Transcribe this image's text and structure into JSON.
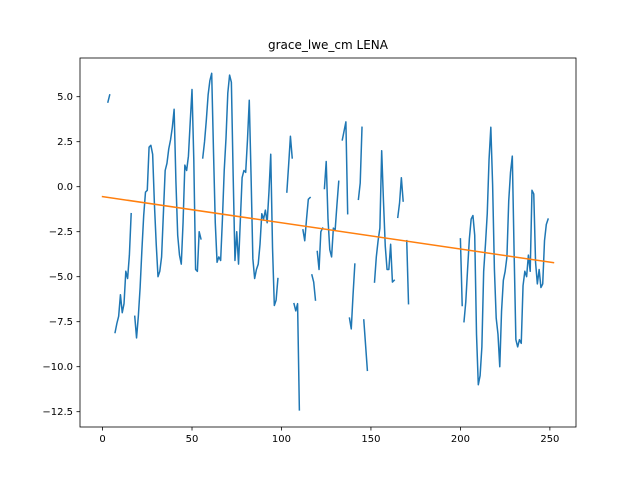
{
  "chart_data": {
    "type": "line",
    "title": "grace_lwe_cm LENA",
    "xlabel": "",
    "ylabel": "",
    "xlim": [
      -12.6,
      264.6
    ],
    "ylim": [
      -13.35,
      7.15
    ],
    "x_ticks": [
      0,
      50,
      100,
      150,
      200,
      250
    ],
    "y_ticks": [
      5.0,
      2.5,
      0.0,
      -2.5,
      -5.0,
      -7.5,
      -10.0,
      -12.5
    ],
    "grid": false,
    "legend": "none",
    "series": [
      {
        "color": "#1f77b4",
        "segments": [
          [
            [
              3,
              4.7
            ],
            [
              4,
              5.1
            ]
          ],
          [
            [
              7,
              -8.1
            ],
            [
              8,
              -7.6
            ],
            [
              9,
              -7.2
            ],
            [
              10,
              -6.0
            ],
            [
              11,
              -7.0
            ],
            [
              12,
              -6.5
            ],
            [
              13,
              -4.7
            ],
            [
              14,
              -5.1
            ],
            [
              15,
              -3.8
            ],
            [
              16,
              -1.5
            ]
          ],
          [
            [
              18,
              -7.2
            ],
            [
              19,
              -8.4
            ],
            [
              20,
              -7.2
            ],
            [
              21,
              -5.6
            ],
            [
              22,
              -3.5
            ],
            [
              23,
              -1.6
            ],
            [
              24,
              -0.3
            ],
            [
              25,
              -0.2
            ],
            [
              26,
              2.2
            ],
            [
              27,
              2.3
            ],
            [
              28,
              1.8
            ],
            [
              29,
              -1.0
            ],
            [
              30,
              -3.2
            ],
            [
              31,
              -5.0
            ],
            [
              32,
              -4.7
            ],
            [
              33,
              -3.9
            ],
            [
              34,
              -1.5
            ],
            [
              35,
              0.9
            ],
            [
              36,
              1.3
            ],
            [
              37,
              2.1
            ],
            [
              38,
              2.6
            ],
            [
              39,
              3.3
            ],
            [
              40,
              4.3
            ],
            [
              41,
              0.3
            ],
            [
              42,
              -2.7
            ],
            [
              43,
              -3.8
            ],
            [
              44,
              -4.3
            ],
            [
              45,
              -2.0
            ],
            [
              46,
              1.2
            ],
            [
              47,
              0.9
            ],
            [
              48,
              1.7
            ],
            [
              49,
              3.6
            ],
            [
              50,
              5.4
            ],
            [
              51,
              1.5
            ],
            [
              52,
              -4.6
            ],
            [
              53,
              -4.7
            ],
            [
              54,
              -2.5
            ],
            [
              55,
              -2.9
            ]
          ],
          [
            [
              56,
              1.6
            ],
            [
              57,
              2.5
            ],
            [
              58,
              3.7
            ],
            [
              59,
              5.1
            ],
            [
              60,
              5.9
            ],
            [
              61,
              6.3
            ],
            [
              62,
              2.0
            ],
            [
              63,
              -2.0
            ],
            [
              64,
              -4.2
            ],
            [
              65,
              -3.9
            ],
            [
              66,
              -4.1
            ],
            [
              67,
              -1.8
            ],
            [
              68,
              0.9
            ],
            [
              69,
              2.7
            ],
            [
              70,
              5.2
            ],
            [
              71,
              6.2
            ],
            [
              72,
              5.8
            ],
            [
              73,
              0.6
            ],
            [
              74,
              -4.1
            ],
            [
              75,
              -2.5
            ],
            [
              76,
              -4.3
            ],
            [
              77,
              -1.9
            ],
            [
              78,
              0.5
            ],
            [
              79,
              0.9
            ],
            [
              80,
              0.8
            ],
            [
              81,
              2.6
            ],
            [
              82,
              4.8
            ],
            [
              83,
              0.6
            ],
            [
              84,
              -4.0
            ],
            [
              85,
              -5.1
            ],
            [
              86,
              -4.6
            ],
            [
              87,
              -4.3
            ],
            [
              88,
              -3.2
            ],
            [
              89,
              -1.5
            ],
            [
              90,
              -1.8
            ],
            [
              91,
              -1.3
            ],
            [
              92,
              -2.0
            ],
            [
              93,
              -0.3
            ],
            [
              94,
              1.8
            ],
            [
              95,
              -3.4
            ],
            [
              96,
              -6.6
            ],
            [
              97,
              -6.3
            ],
            [
              98,
              -5.1
            ]
          ],
          [
            [
              103,
              -0.3
            ],
            [
              104,
              1.2
            ],
            [
              105,
              2.8
            ],
            [
              106,
              1.6
            ]
          ],
          [
            [
              107,
              -6.5
            ],
            [
              108,
              -6.9
            ],
            [
              109,
              -6.5
            ],
            [
              110,
              -12.4
            ]
          ],
          [
            [
              112,
              -2.4
            ],
            [
              113,
              -3.0
            ],
            [
              114,
              -1.8
            ],
            [
              115,
              -0.7
            ],
            [
              116,
              -0.6
            ]
          ],
          [
            [
              117,
              -4.9
            ],
            [
              118,
              -5.3
            ],
            [
              119,
              -6.3
            ]
          ],
          [
            [
              120,
              -3.6
            ],
            [
              121,
              -4.6
            ],
            [
              122,
              -2.5
            ],
            [
              123,
              -2.3
            ]
          ],
          [
            [
              124,
              -0.1
            ],
            [
              125,
              1.4
            ],
            [
              126,
              -1.8
            ],
            [
              127,
              -3.5
            ],
            [
              128,
              -3.9
            ],
            [
              129,
              -2.3
            ],
            [
              130,
              -2.4
            ],
            [
              131,
              -1.0
            ],
            [
              132,
              0.3
            ]
          ],
          [
            [
              134,
              2.6
            ],
            [
              135,
              3.1
            ],
            [
              136,
              3.6
            ],
            [
              137,
              -1.5
            ]
          ],
          [
            [
              138,
              -7.3
            ],
            [
              139,
              -7.9
            ],
            [
              140,
              -6.0
            ],
            [
              141,
              -4.3
            ]
          ],
          [
            [
              143,
              -0.7
            ],
            [
              144,
              0.2
            ],
            [
              145,
              3.3
            ]
          ],
          [
            [
              146,
              -7.4
            ],
            [
              147,
              -8.8
            ],
            [
              148,
              -10.2
            ]
          ],
          [
            [
              152,
              -5.3
            ],
            [
              153,
              -3.9
            ],
            [
              154,
              -3.0
            ],
            [
              155,
              -2.3
            ],
            [
              156,
              2.0
            ],
            [
              157,
              -0.8
            ],
            [
              158,
              -3.3
            ],
            [
              159,
              -4.6
            ],
            [
              160,
              -4.6
            ],
            [
              161,
              -3.2
            ],
            [
              162,
              -5.3
            ],
            [
              163,
              -5.2
            ]
          ],
          [
            [
              165,
              -1.7
            ],
            [
              166,
              -0.9
            ],
            [
              167,
              0.5
            ],
            [
              168,
              -0.8
            ]
          ],
          [
            [
              170,
              -3.0
            ],
            [
              171,
              -6.5
            ]
          ],
          [
            [
              200,
              -2.9
            ],
            [
              201,
              -6.6
            ]
          ],
          [
            [
              202,
              -7.5
            ],
            [
              203,
              -6.4
            ],
            [
              204,
              -4.6
            ],
            [
              205,
              -2.9
            ],
            [
              206,
              -1.8
            ],
            [
              207,
              -1.6
            ],
            [
              208,
              -2.7
            ],
            [
              209,
              -8.2
            ],
            [
              210,
              -11.0
            ],
            [
              211,
              -10.5
            ],
            [
              212,
              -8.9
            ],
            [
              213,
              -4.7
            ],
            [
              214,
              -3.2
            ],
            [
              215,
              -1.5
            ],
            [
              216,
              1.5
            ],
            [
              217,
              3.3
            ],
            [
              218,
              0.1
            ],
            [
              219,
              -4.6
            ],
            [
              220,
              -7.3
            ],
            [
              221,
              -8.2
            ],
            [
              222,
              -10.0
            ],
            [
              223,
              -6.9
            ],
            [
              224,
              -5.2
            ],
            [
              225,
              -4.7
            ],
            [
              226,
              -3.9
            ],
            [
              227,
              -0.8
            ],
            [
              228,
              0.8
            ],
            [
              229,
              1.7
            ],
            [
              230,
              -3.6
            ],
            [
              231,
              -8.5
            ],
            [
              232,
              -8.9
            ],
            [
              233,
              -8.5
            ],
            [
              234,
              -8.7
            ],
            [
              235,
              -5.5
            ],
            [
              236,
              -4.7
            ],
            [
              237,
              -5.0
            ],
            [
              238,
              -3.8
            ],
            [
              239,
              -4.7
            ],
            [
              240,
              -0.2
            ],
            [
              241,
              -0.4
            ],
            [
              242,
              -4.2
            ],
            [
              243,
              -5.4
            ],
            [
              244,
              -4.6
            ],
            [
              245,
              -5.6
            ],
            [
              246,
              -5.4
            ],
            [
              247,
              -3.0
            ],
            [
              248,
              -2.1
            ],
            [
              249,
              -1.8
            ]
          ]
        ]
      },
      {
        "color": "#ff7f0e",
        "segments": [
          [
            [
              0,
              -0.55
            ],
            [
              252,
              -4.22
            ]
          ]
        ]
      }
    ]
  }
}
